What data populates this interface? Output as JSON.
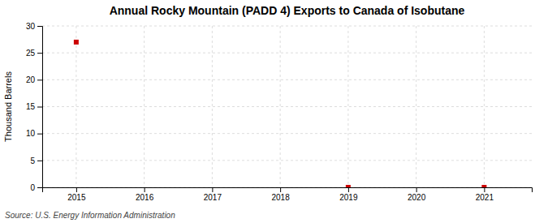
{
  "chart_data": {
    "type": "scatter",
    "title": "Annual Rocky Mountain (PADD 4) Exports to Canada of Isobutane",
    "ylabel": "Thousand Barrels",
    "source": "Source: U.S. Energy Information Administration",
    "x": [
      2015,
      2016,
      2017,
      2018,
      2019,
      2020,
      2021
    ],
    "values": [
      27,
      null,
      null,
      null,
      0,
      null,
      0
    ],
    "color": "#cc0000",
    "marker": "square",
    "xlim": [
      2014.5,
      2021.7
    ],
    "xticks": [
      2015,
      2016,
      2017,
      2018,
      2019,
      2020,
      2021
    ],
    "ylim": [
      0,
      30
    ],
    "yticks": [
      0,
      5,
      10,
      15,
      20,
      25,
      30
    ],
    "grid": true
  }
}
